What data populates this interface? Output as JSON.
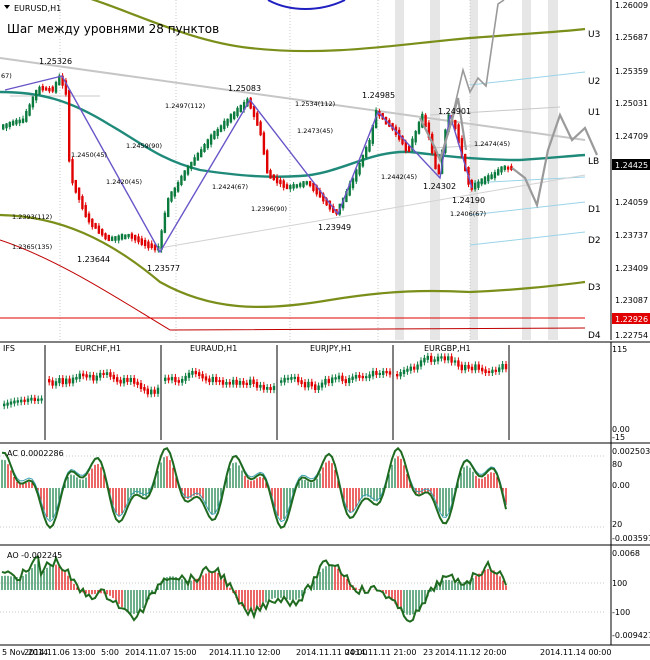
{
  "window": {
    "symbol_label": "EURUSD,H1",
    "collapse_icon": "triangle-down-icon"
  },
  "main": {
    "caption": "Шаг между уровнями 28 пунктов",
    "price_labels": [
      "1.26009",
      "1.25687",
      "1.25359",
      "1.25031",
      "1.24709",
      "1.24425",
      "1.24059",
      "1.23737",
      "1.23409",
      "1.23087",
      "1.22926",
      "1.22754"
    ],
    "current_price": "1.24425",
    "red_price": "1.22926",
    "level_labels": [
      "U3",
      "U2",
      "U1",
      "LB",
      "D1",
      "D2",
      "D3",
      "D4"
    ],
    "extremes": [
      "1.25326",
      "1.25083",
      "1.24985",
      "1.24901",
      "1.24302",
      "1.24190",
      "1.23949",
      "1.23644",
      "1.23577"
    ],
    "fib_labels": [
      "1.2497(112)",
      "1.2534(112)",
      "1.2473(45)",
      "1.2459(90)",
      "1.2450(45)",
      "1.2420(45)",
      "1.2424(67)",
      "1.2396(90)",
      "1.2442(45)",
      "1.2474(45)",
      "1.2406(67)",
      "1.2393(112)",
      "1.2365(135)"
    ],
    "left_edge_label": "67)"
  },
  "mini": {
    "title": "IFS",
    "pairs": [
      "EURCHF,H1",
      "EURAUD,H1",
      "EURJPY,H1",
      "EURGBP,H1"
    ],
    "scale": [
      "115",
      "0.00",
      "-15"
    ]
  },
  "ac": {
    "title": "AC 0.0002286",
    "scale": [
      "0.002503",
      "80",
      "0.00",
      "20",
      "-0.003597"
    ]
  },
  "ao": {
    "title": "AO -0.002245",
    "scale": [
      "0.0068",
      "100",
      "-100",
      "-0.009427"
    ]
  },
  "time_axis": [
    "5 Nov 2014",
    "2014.11.06 13:00",
    "5:00",
    "2014.11.07 15:00",
    "2014.11.10 12:00",
    "2014.11.11 04:00",
    "2014.11.11 21:00",
    "23",
    "2014.11.12 20:00",
    "2014.11.14 00:00"
  ],
  "colors": {
    "up": "#0a7a3d",
    "down": "#e00000",
    "channel": "#7a8f1a",
    "ma": "#1f8a7a",
    "zigzag": "#6a55c8",
    "forecast": "#8c8c8c",
    "ac_line": "#1f6a1f",
    "ao_line": "#1f6a1f"
  }
}
